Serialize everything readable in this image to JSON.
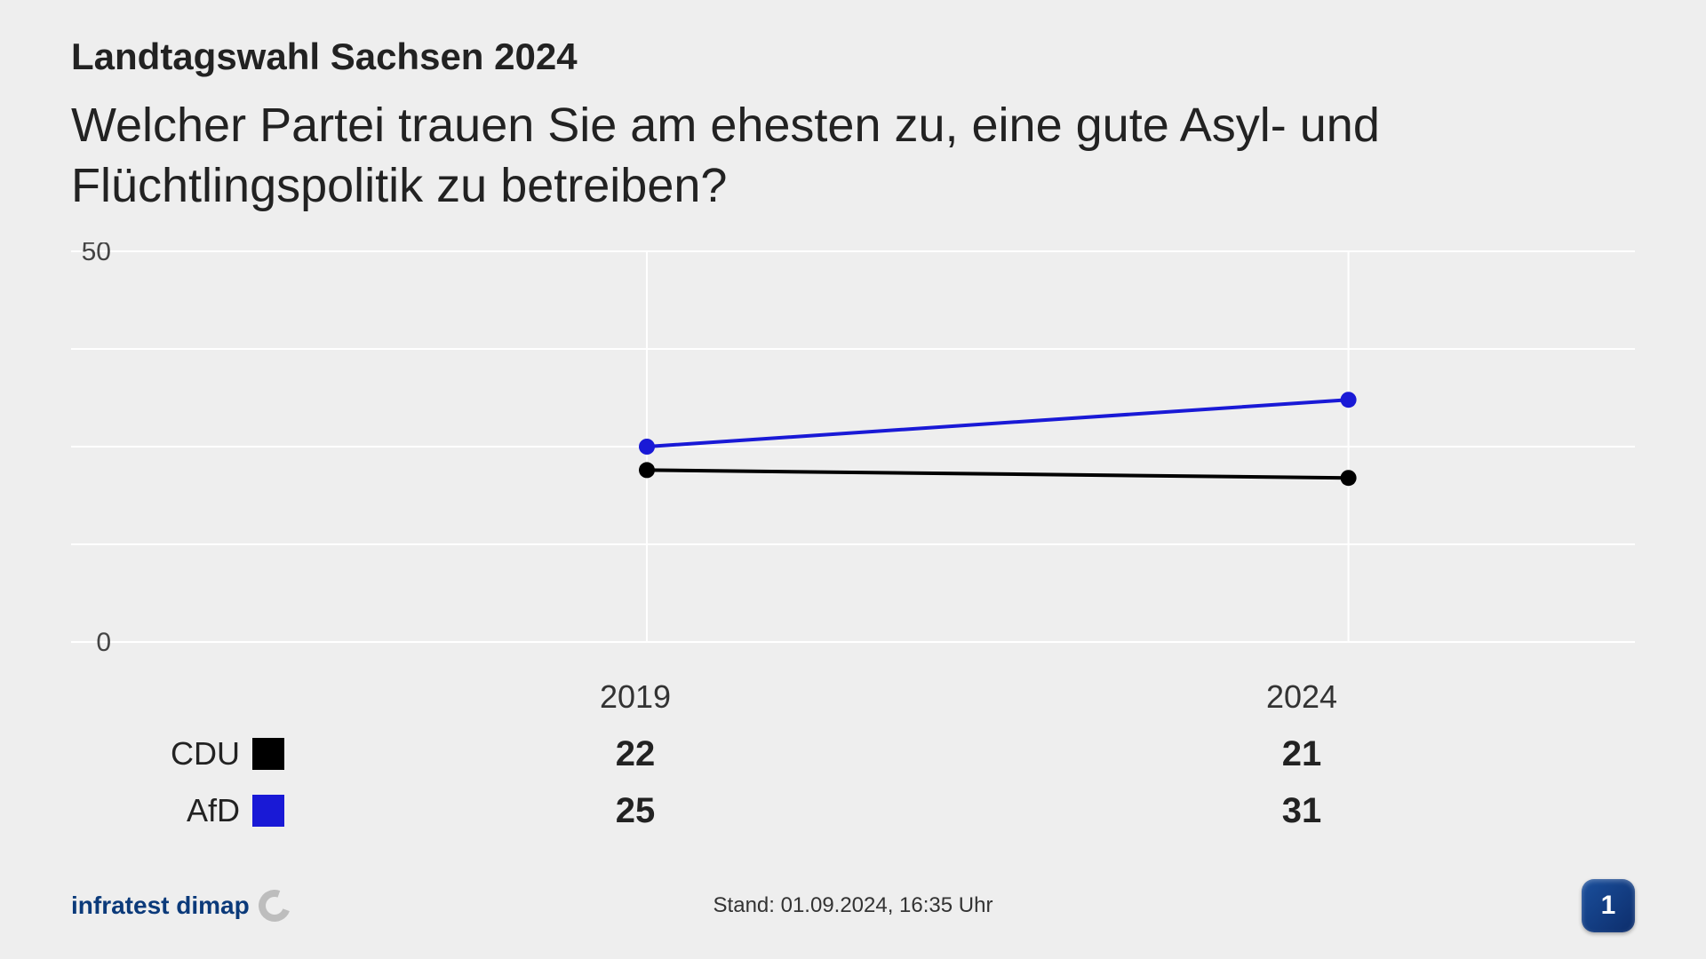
{
  "header": {
    "suptitle": "Landtagswahl Sachsen 2024",
    "title": "Welcher Partei trauen Sie am ehesten zu, eine gute  Asyl- und Flüchtlingspolitik zu betreiben?"
  },
  "chart": {
    "type": "line",
    "background_color": "#eeeeee",
    "grid_color": "#ffffff",
    "grid_line_width": 2,
    "ylim": [
      0,
      50
    ],
    "yticks": [
      0,
      50
    ],
    "ytick_fontsize": 30,
    "x_categories": [
      "2019",
      "2024"
    ],
    "series": [
      {
        "name": "CDU",
        "color": "#000000",
        "values": [
          22,
          21
        ],
        "line_width": 4,
        "marker_radius": 9
      },
      {
        "name": "AfD",
        "color": "#1919d6",
        "values": [
          25,
          31
        ],
        "line_width": 4,
        "marker_radius": 9
      }
    ],
    "x_positions_pct": [
      35,
      82
    ],
    "label_fontsize": 36,
    "value_fontsize": 40
  },
  "footer": {
    "source_logo_text": "infratest dimap",
    "status_prefix": "Stand:  ",
    "status_text": "01.09.2024, 16:35 Uhr",
    "broadcaster_glyph": "1"
  },
  "colors": {
    "page_bg": "#eeeeee",
    "text": "#222222",
    "source_logo": "#0b3a7a",
    "ard_bg_from": "#1a4f9c",
    "ard_bg_to": "#0d2d6b"
  }
}
